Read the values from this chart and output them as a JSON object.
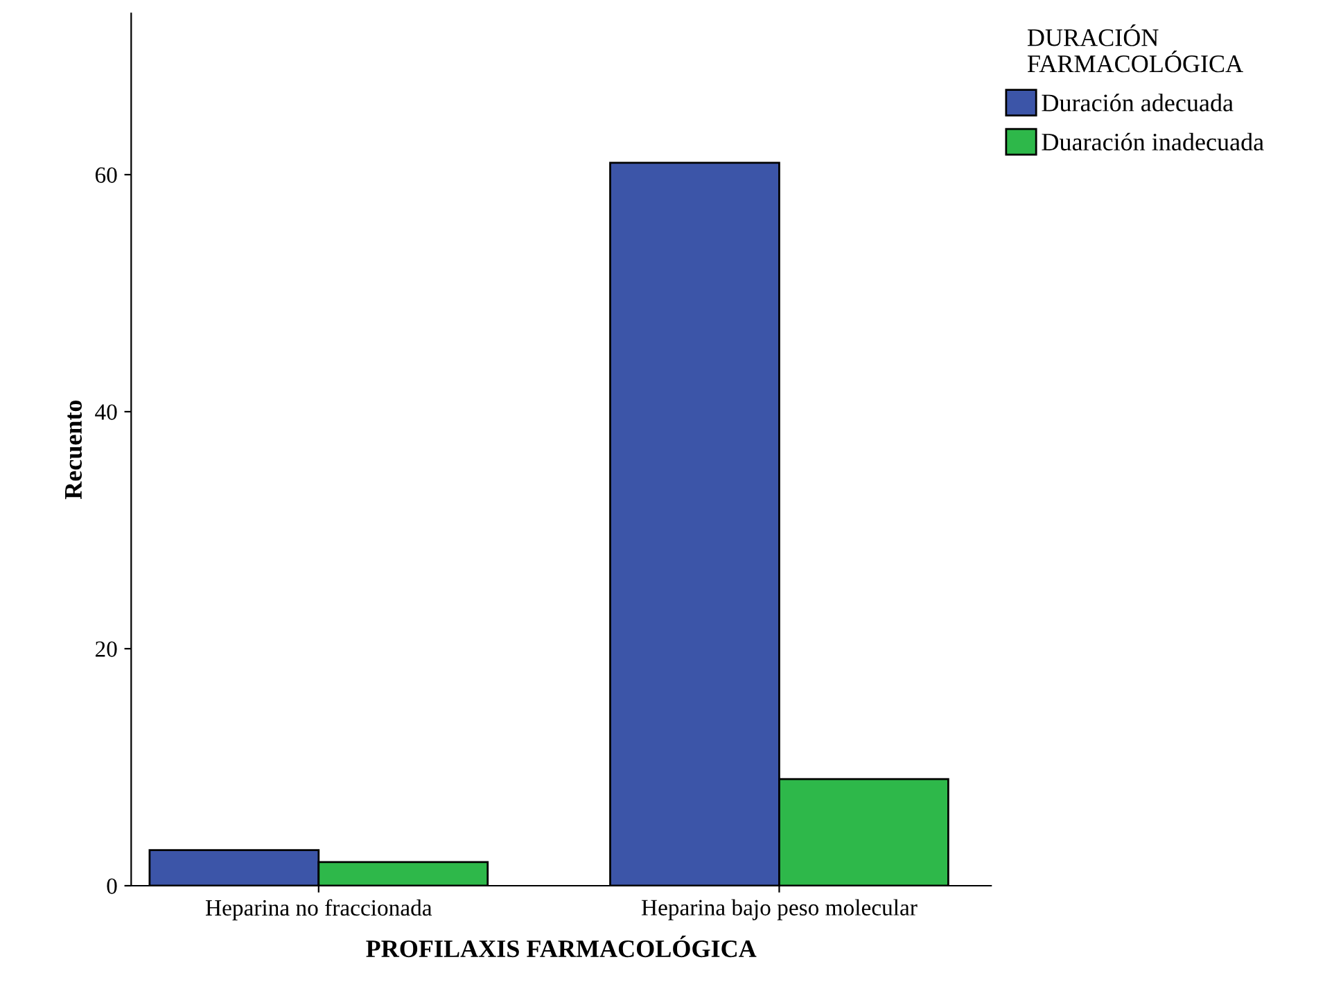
{
  "chart_data": {
    "type": "bar",
    "xlabel": "PROFILAXIS FARMACOLÓGICA",
    "ylabel": "Recuento",
    "legend_title": "DURACIÓN\nFARMACOLÓGICA",
    "categories": [
      "Heparina no fraccionada",
      "Heparina bajo peso molecular"
    ],
    "series": [
      {
        "name": "Duración adecuada",
        "color": "#3c55a8",
        "values": [
          3,
          61
        ]
      },
      {
        "name": "Duaración inadecuada",
        "color": "#2eb84a",
        "values": [
          2,
          9
        ]
      }
    ],
    "ylim": [
      0,
      73.6
    ],
    "yticks": [
      0,
      20,
      40,
      60
    ],
    "grid": false,
    "legend": "top right"
  }
}
